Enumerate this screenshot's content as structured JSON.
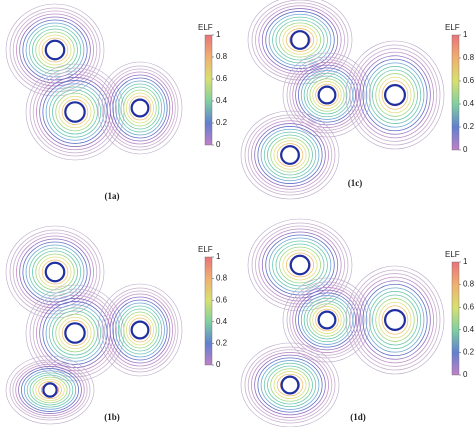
{
  "panels": [
    {
      "label": "(1a)",
      "colorbar": {
        "title": "ELF",
        "ticks": [
          1,
          0.8,
          0.6,
          0.4,
          0.2,
          0
        ]
      }
    },
    {
      "label": "(1c)",
      "colorbar": {
        "title": "ELF",
        "ticks": [
          1,
          0.8,
          0.6,
          0.4,
          0.2,
          0
        ]
      }
    },
    {
      "label": "(1b)",
      "colorbar": {
        "title": "ELF",
        "ticks": [
          1,
          0.8,
          0.6,
          0.4,
          0.2,
          0
        ]
      }
    },
    {
      "label": "(1d)",
      "colorbar": {
        "title": "ELF",
        "ticks": [
          1,
          0.8,
          0.6,
          0.4,
          0.2,
          0
        ]
      }
    }
  ]
}
